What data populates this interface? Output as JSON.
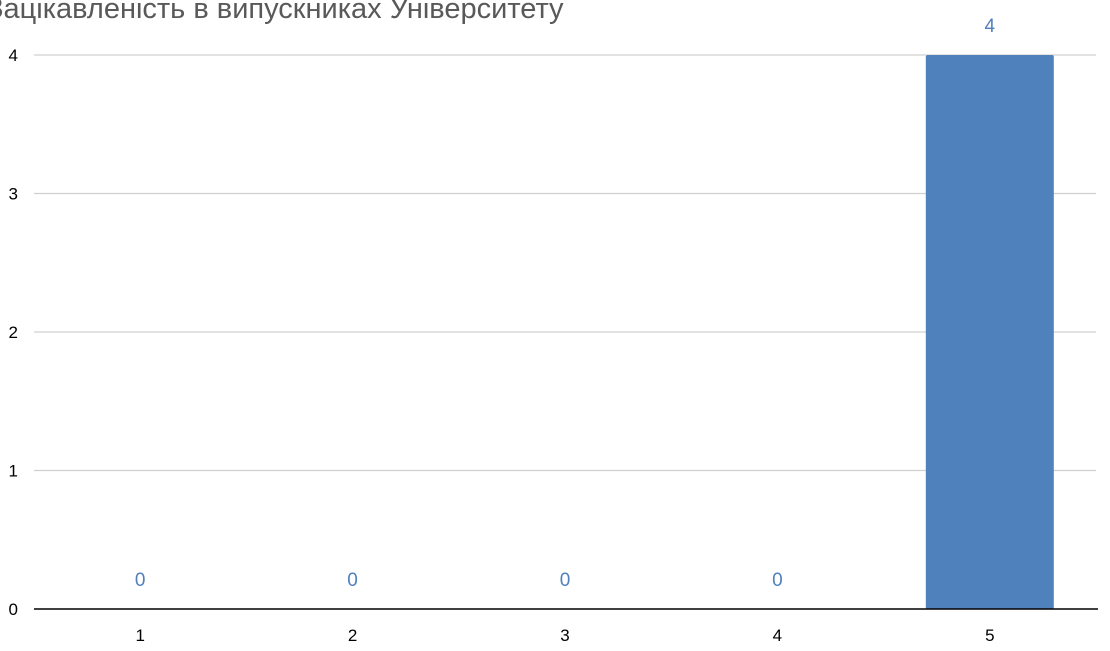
{
  "chart_data": {
    "type": "bar",
    "title": "Зацікавленість в випускниках Університету",
    "categories": [
      "1",
      "2",
      "3",
      "4",
      "5"
    ],
    "values": [
      0,
      0,
      0,
      0,
      4
    ],
    "data_labels": [
      "0",
      "0",
      "0",
      "0",
      "4"
    ],
    "xlabel": "",
    "ylabel": "",
    "ylim": [
      0,
      4
    ],
    "yticks": [
      "0",
      "1",
      "2",
      "3",
      "4"
    ],
    "grid": true,
    "legend": "none",
    "bar_color": "#4f81bd",
    "label_color": "#4f81bd",
    "grid_color": "#d0d0d0",
    "axis_color": "#000000"
  }
}
